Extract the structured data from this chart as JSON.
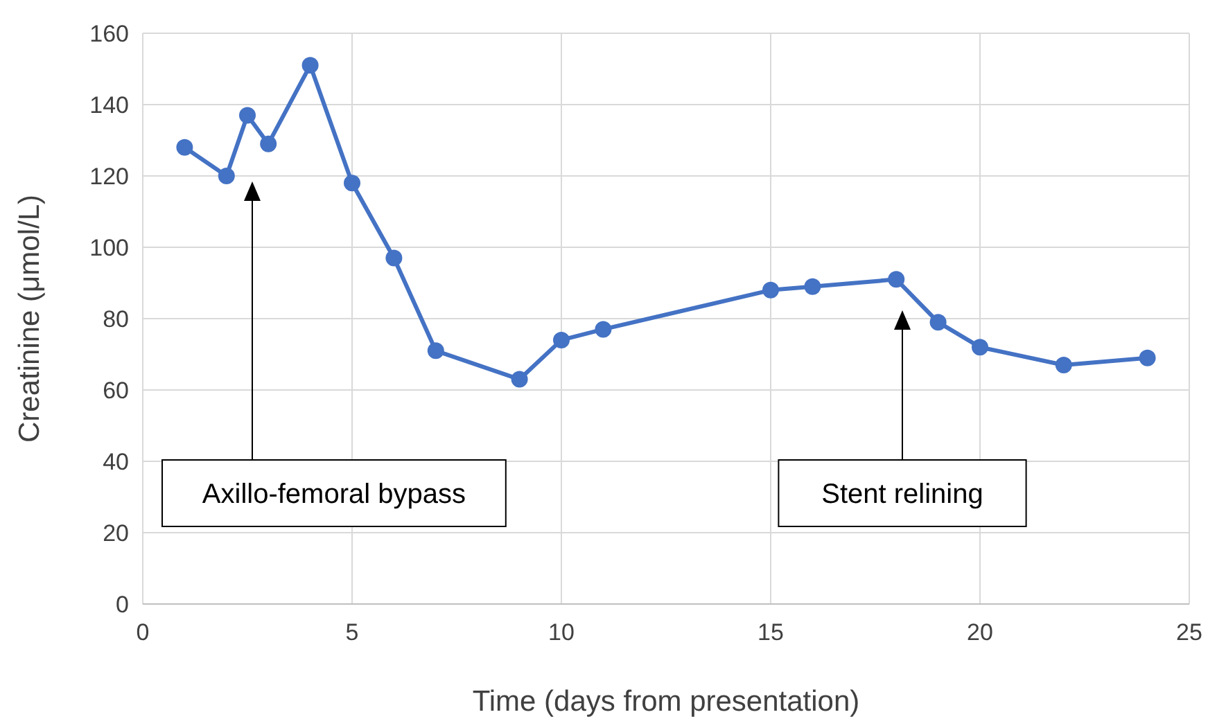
{
  "chart_data": {
    "type": "line",
    "xlabel": "Time (days from presentation)",
    "ylabel": "Creatinine (μmol/L)",
    "x": [
      1,
      2,
      2.5,
      3,
      4,
      5,
      6,
      7,
      9,
      10,
      11,
      15,
      16,
      18,
      19,
      20,
      22,
      24
    ],
    "series": [
      {
        "color": "#4472c4",
        "values": [
          128,
          120,
          137,
          129,
          151,
          118,
          97,
          71,
          63,
          74,
          77,
          88,
          89,
          91,
          79,
          72,
          67,
          69
        ]
      }
    ],
    "xlim": [
      0,
      25
    ],
    "xticks": [
      0,
      5,
      10,
      15,
      20,
      25
    ],
    "ylim": [
      0,
      160
    ],
    "yticks": [
      0,
      20,
      40,
      60,
      80,
      100,
      120,
      140,
      160
    ],
    "grid": true,
    "marker": "circle",
    "line_style": "solid",
    "annotations": [
      "Axillo-femoral bypass",
      "Stent relining"
    ]
  }
}
